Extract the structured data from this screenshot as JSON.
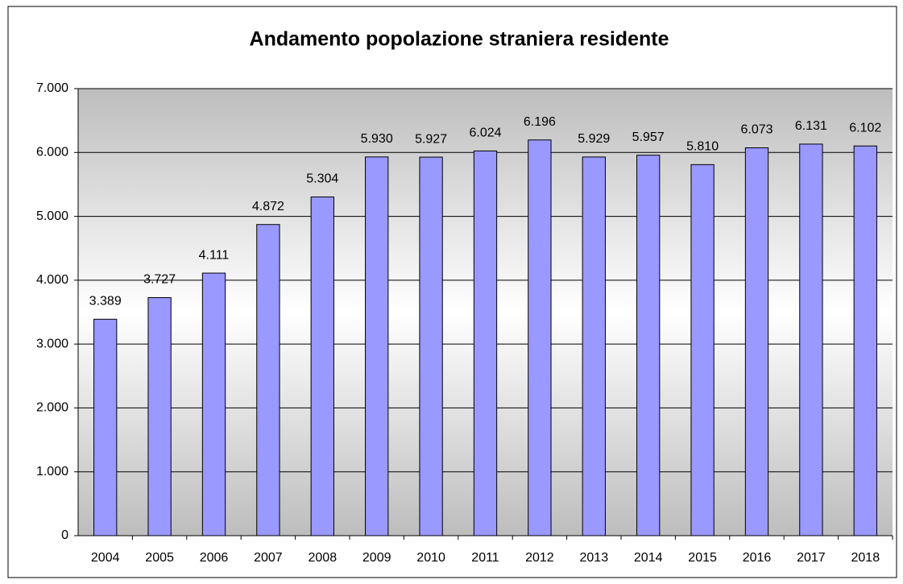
{
  "chart_data": {
    "type": "bar",
    "title": "Andamento popolazione straniera residente",
    "categories": [
      "2004",
      "2005",
      "2006",
      "2007",
      "2008",
      "2009",
      "2010",
      "2011",
      "2012",
      "2013",
      "2014",
      "2015",
      "2016",
      "2017",
      "2018"
    ],
    "values": [
      3389,
      3727,
      4111,
      4872,
      5304,
      5930,
      5927,
      6024,
      6196,
      5929,
      5957,
      5810,
      6073,
      6131,
      6102
    ],
    "value_labels": [
      "3.389",
      "3.727",
      "4.111",
      "4.872",
      "5.304",
      "5.930",
      "5.927",
      "6.024",
      "6.196",
      "5.929",
      "5.957",
      "5.810",
      "6.073",
      "6.131",
      "6.102"
    ],
    "color": "#9999ff",
    "ylim": [
      0,
      7000
    ],
    "yticks": [
      {
        "value": 0,
        "label": "0"
      },
      {
        "value": 1000,
        "label": "1.000"
      },
      {
        "value": 2000,
        "label": "2.000"
      },
      {
        "value": 3000,
        "label": "3.000"
      },
      {
        "value": 4000,
        "label": "4.000"
      },
      {
        "value": 5000,
        "label": "5.000"
      },
      {
        "value": 6000,
        "label": "6.000"
      },
      {
        "value": 7000,
        "label": "7.000"
      }
    ],
    "grid": true
  }
}
